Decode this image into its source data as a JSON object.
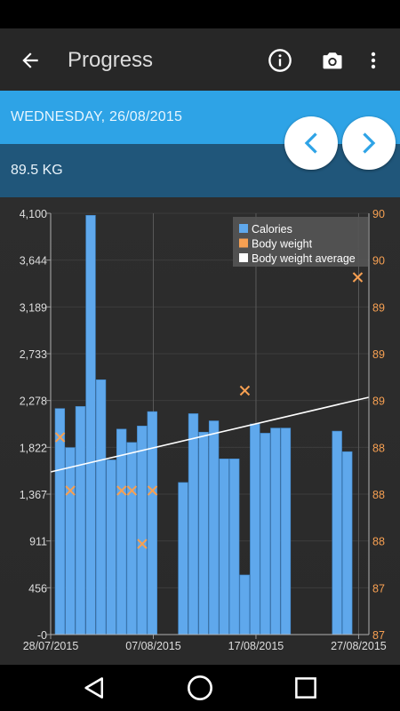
{
  "app_bar": {
    "title": "Progress",
    "back_icon": "arrow-left-icon",
    "info_icon": "info-icon",
    "camera_icon": "camera-icon",
    "menu_icon": "more-vert-icon"
  },
  "date_bar": {
    "date": "WEDNESDAY, 26/08/2015",
    "color": "#2ea3e6"
  },
  "weight_bar": {
    "weight": "89.5 KG",
    "color": "#20567a"
  },
  "nav_buttons": {
    "prev_icon": "chevron-left-icon",
    "next_icon": "chevron-right-icon",
    "icon_color": "#2ea3e6"
  },
  "system_nav": {
    "back_icon": "triangle-back-icon",
    "home_icon": "circle-home-icon",
    "recents_icon": "square-recents-icon"
  },
  "chart_data": {
    "type": "bar",
    "left_axis_ticks": [
      "4,100",
      "3,644",
      "3,189",
      "2,733",
      "2,278",
      "1,822",
      "1,367",
      "911",
      "456",
      "-0"
    ],
    "right_axis_ticks": [
      "90",
      "90",
      "89",
      "89",
      "89",
      "88",
      "88",
      "88",
      "87",
      "87"
    ],
    "ylim_left": [
      0,
      4100
    ],
    "x_tick_labels": [
      "28/07/2015",
      "07/08/2015",
      "17/08/2015",
      "27/08/2015"
    ],
    "x_range": [
      "2015-07-28",
      "2015-08-28"
    ],
    "legend": [
      {
        "label": "Calories",
        "color": "#5fa8ec"
      },
      {
        "label": "Body weight",
        "color": "#f7a052"
      },
      {
        "label": "Body weight average",
        "color": "#ffffff"
      }
    ],
    "calories": [
      {
        "date": "2015-07-28",
        "value": 2200
      },
      {
        "date": "2015-07-29",
        "value": 1820
      },
      {
        "date": "2015-07-30",
        "value": 2220
      },
      {
        "date": "2015-07-31",
        "value": 4080
      },
      {
        "date": "2015-08-01",
        "value": 2480
      },
      {
        "date": "2015-08-02",
        "value": 1700
      },
      {
        "date": "2015-08-03",
        "value": 2000
      },
      {
        "date": "2015-08-04",
        "value": 1870
      },
      {
        "date": "2015-08-05",
        "value": 2030
      },
      {
        "date": "2015-08-06",
        "value": 2170
      },
      {
        "date": "2015-08-09",
        "value": 1480
      },
      {
        "date": "2015-08-10",
        "value": 2150
      },
      {
        "date": "2015-08-11",
        "value": 1970
      },
      {
        "date": "2015-08-12",
        "value": 2080
      },
      {
        "date": "2015-08-13",
        "value": 1710
      },
      {
        "date": "2015-08-14",
        "value": 1710
      },
      {
        "date": "2015-08-15",
        "value": 580
      },
      {
        "date": "2015-08-16",
        "value": 2050
      },
      {
        "date": "2015-08-17",
        "value": 1960
      },
      {
        "date": "2015-08-18",
        "value": 2010
      },
      {
        "date": "2015-08-19",
        "value": 2010
      },
      {
        "date": "2015-08-24",
        "value": 1980
      },
      {
        "date": "2015-08-25",
        "value": 1780
      }
    ],
    "body_weight": [
      {
        "date": "2015-07-29",
        "value": 88.3
      },
      {
        "date": "2015-07-30",
        "value": 87.9
      },
      {
        "date": "2015-08-04",
        "value": 87.9
      },
      {
        "date": "2015-08-05",
        "value": 87.9
      },
      {
        "date": "2015-08-06",
        "value": 87.5
      },
      {
        "date": "2015-08-07",
        "value": 87.9
      },
      {
        "date": "2015-08-16",
        "value": 88.65
      },
      {
        "date": "2015-08-27",
        "value": 89.5
      }
    ],
    "body_weight_average": [
      {
        "date": "2015-07-28",
        "value": 88.04
      },
      {
        "date": "2015-08-28",
        "value": 88.6
      }
    ],
    "ylim_right": [
      86.82,
      89.98
    ],
    "grid": true,
    "legend_placement": "top-right"
  }
}
